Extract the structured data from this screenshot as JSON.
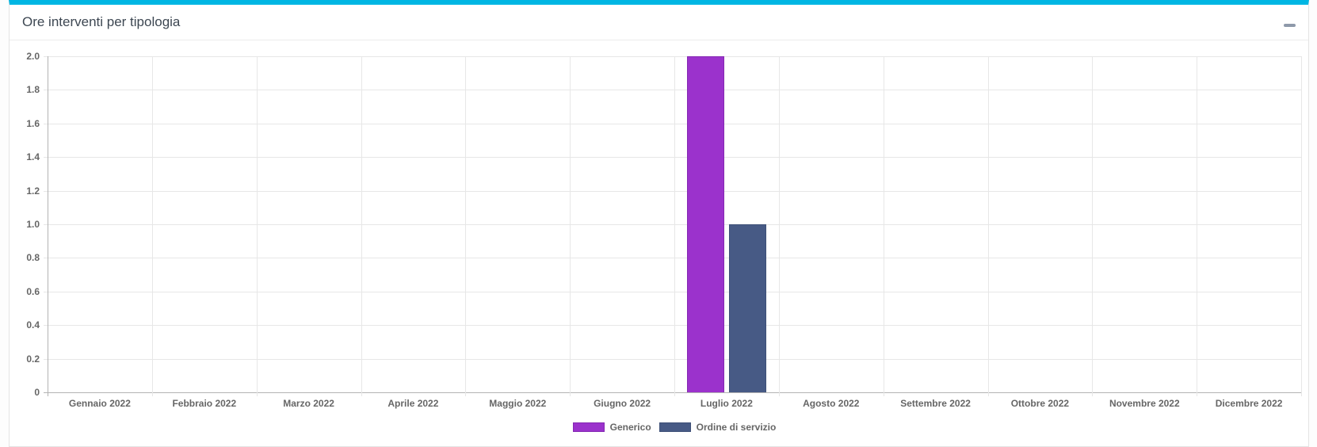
{
  "card": {
    "title": "Ore interventi per tipologia",
    "accent_color": "#00b6e3",
    "collapse_icon": "minus-icon"
  },
  "chart_data": {
    "type": "bar",
    "title": "Ore interventi per tipologia",
    "categories": [
      "Gennaio 2022",
      "Febbraio 2022",
      "Marzo 2022",
      "Aprile 2022",
      "Maggio 2022",
      "Giugno 2022",
      "Luglio 2022",
      "Agosto 2022",
      "Settembre 2022",
      "Ottobre 2022",
      "Novembre 2022",
      "Dicembre 2022"
    ],
    "series": [
      {
        "name": "Generico",
        "color": "#9b32cc",
        "border_color": "#8529b3",
        "values": [
          0,
          0,
          0,
          0,
          0,
          0,
          2,
          0,
          0,
          0,
          0,
          0
        ]
      },
      {
        "name": "Ordine di servizio",
        "color": "#475a85",
        "border_color": "#3f5178",
        "values": [
          0,
          0,
          0,
          0,
          0,
          0,
          1,
          0,
          0,
          0,
          0,
          0
        ]
      }
    ],
    "xlabel": "",
    "ylabel": "",
    "ylim": [
      0,
      2
    ],
    "y_step": 0.2,
    "y_ticks_top_to_bottom": [
      "2.0",
      "1.8",
      "1.6",
      "1.4",
      "1.2",
      "1.0",
      "0.8",
      "0.6",
      "0.4",
      "0.2",
      "0"
    ],
    "grid": true,
    "legend_position": "bottom"
  }
}
